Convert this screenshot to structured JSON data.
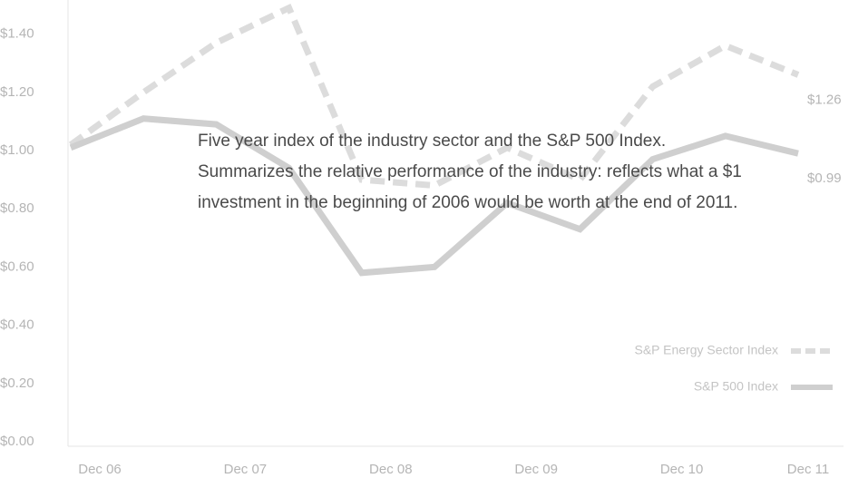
{
  "chart_data": {
    "type": "line",
    "categories": [
      "Dec 06",
      null,
      "Dec 07",
      null,
      "Dec 08",
      null,
      "Dec 09",
      null,
      "Dec 10",
      null,
      "Dec 11"
    ],
    "series": [
      {
        "name": "S&P Energy Sector Index",
        "color": "#dcdcdc",
        "dashed": true,
        "values": [
          1.02,
          1.2,
          1.37,
          1.49,
          0.9,
          0.88,
          1.01,
          0.9,
          1.22,
          1.36,
          1.26
        ],
        "value_labels": [
          null,
          null,
          null,
          null,
          null,
          null,
          null,
          null,
          null,
          null,
          "$1.26"
        ]
      },
      {
        "name": "S&P 500 Index",
        "color": "#cfcfcf",
        "dashed": false,
        "values": [
          1.01,
          1.11,
          1.09,
          0.94,
          0.58,
          0.6,
          0.82,
          0.73,
          0.97,
          1.05,
          0.99
        ],
        "value_labels": [
          null,
          null,
          null,
          null,
          null,
          null,
          null,
          null,
          null,
          null,
          "$0.99"
        ]
      }
    ],
    "ylim": [
      0,
      1.5
    ],
    "yticks": [
      {
        "value": 0,
        "label": "$0.00"
      },
      {
        "value": 0.2,
        "label": "$0.20"
      },
      {
        "value": 0.4,
        "label": "$0.40"
      },
      {
        "value": 0.6,
        "label": "$0.60"
      },
      {
        "value": 0.8,
        "label": "$0.80"
      },
      {
        "value": 1.0,
        "label": "$1.00"
      },
      {
        "value": 1.2,
        "label": "$1.20"
      },
      {
        "value": 1.4,
        "label": "$1.40"
      }
    ],
    "annotation": [
      "Five year index of the industry sector and the S&P 500 Index.",
      "Summarizes the relative performance of the industry: reflects what a $1",
      "investment in the beginning of 2006 would be worth at the end of 2011."
    ],
    "legend": "bottom-right"
  }
}
